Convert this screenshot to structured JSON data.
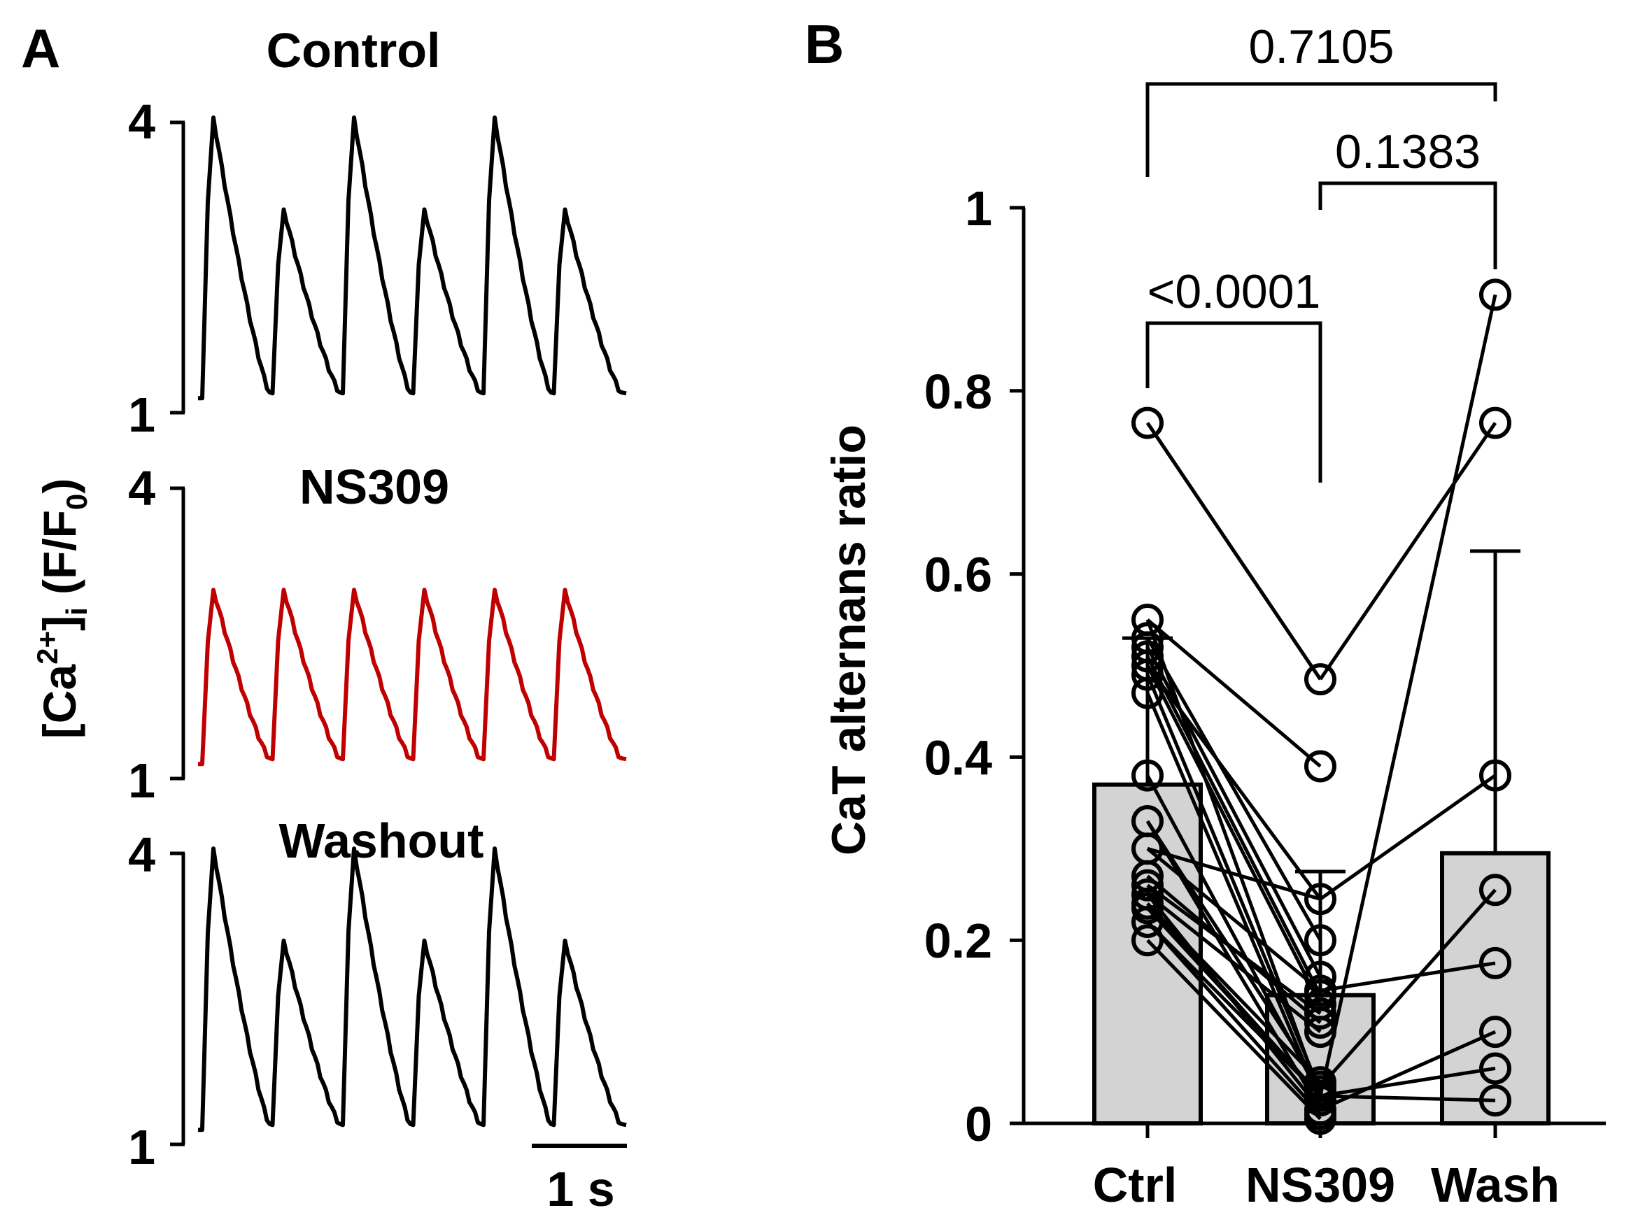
{
  "panel_a": {
    "letter": "A",
    "y_axis_label": "[Ca²⁺]ᵢ (F/F₀)",
    "y_axis_label_parts": {
      "main": "[Ca",
      "sup": "2+",
      "mid": "]",
      "sub_i": "i",
      "rest": " (F/F",
      "sub_0": "0",
      "end": ")"
    },
    "traces": [
      {
        "title": "Control",
        "color": "#000000",
        "ymin_label": "1",
        "ymax_label": "4",
        "pattern": "alternans"
      },
      {
        "title": "NS309",
        "color": "#c00000",
        "ymin_label": "1",
        "ymax_label": "4",
        "pattern": "uniform"
      },
      {
        "title": "Washout",
        "color": "#000000",
        "ymin_label": "1",
        "ymax_label": "4",
        "pattern": "alternans"
      }
    ],
    "scale_bar": "1 s"
  },
  "panel_b": {
    "letter": "B",
    "comparisons": [
      {
        "label": "0.7105",
        "from": "Ctrl",
        "to": "Wash"
      },
      {
        "label": "0.1383",
        "from": "NS309",
        "to": "Wash"
      },
      {
        "label": "<0.0001",
        "from": "Ctrl",
        "to": "NS309"
      }
    ]
  },
  "chart_data": {
    "type": "bar",
    "title": "",
    "xlabel": "",
    "ylabel": "CaT alternans ratio",
    "ylim": [
      0,
      1
    ],
    "yticks": [
      0,
      0.2,
      0.4,
      0.6,
      0.8,
      1
    ],
    "ytick_labels": [
      "0",
      "0.2",
      "0.4",
      "0.6",
      "0.8",
      "1"
    ],
    "categories": [
      "Ctrl",
      "NS309",
      "Wash"
    ],
    "means": [
      0.37,
      0.14,
      0.295
    ],
    "sd_upper": [
      0.53,
      0.275,
      0.625
    ],
    "bar_color": "#d3d3d3",
    "paired_cells": [
      [
        0.765,
        0.485
      ],
      [
        0.55,
        0.39
      ],
      [
        0.53,
        0.2
      ],
      [
        0.52,
        0.16
      ],
      [
        0.51,
        0.14
      ],
      [
        0.5,
        0.13
      ],
      [
        0.49,
        0.035
      ],
      [
        0.47,
        0.025
      ],
      [
        0.38,
        0.03
      ],
      [
        0.33,
        0.015
      ],
      [
        0.3,
        0.245
      ],
      [
        0.27,
        0.11
      ],
      [
        0.26,
        0.12
      ],
      [
        0.25,
        0.1
      ],
      [
        0.24,
        0.045
      ],
      [
        0.235,
        0.03
      ],
      [
        0.22,
        0.01
      ],
      [
        0.2,
        0.005
      ]
    ],
    "triplet_cells": [
      [
        0.765,
        0.485,
        0.765
      ],
      [
        0.55,
        0.03,
        0.905
      ],
      [
        0.5,
        0.245,
        0.38
      ],
      [
        0.33,
        0.04,
        0.255
      ],
      [
        0.3,
        0.145,
        0.175
      ],
      [
        0.25,
        0.015,
        0.1
      ],
      [
        0.24,
        0.03,
        0.06
      ],
      [
        0.22,
        0.03,
        0.025
      ]
    ]
  }
}
